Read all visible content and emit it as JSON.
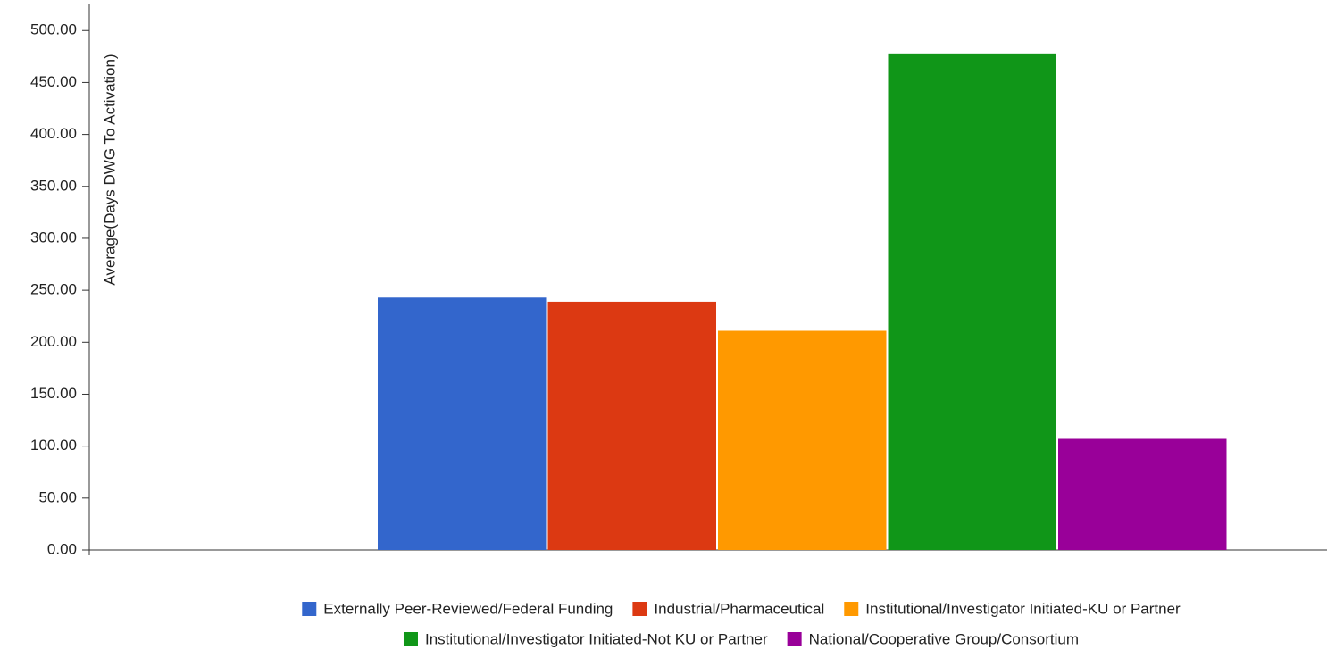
{
  "chart_data": {
    "type": "bar",
    "y_label": "Average(Days DWG To Activation)",
    "categories": [
      null
    ],
    "series": [
      {
        "name": "Externally Peer-Reviewed/Federal Funding",
        "color": "#3366cc",
        "values": [
          243
        ]
      },
      {
        "name": "Industrial/Pharmaceutical",
        "color": "#dc3912",
        "values": [
          239
        ]
      },
      {
        "name": "Institutional/Investigator Initiated-KU or Partner",
        "color": "#ff9900",
        "values": [
          211
        ]
      },
      {
        "name": "Institutional/Investigator Initiated-Not KU or Partner",
        "color": "#109618",
        "values": [
          478
        ]
      },
      {
        "name": "National/Cooperative Group/Consortium",
        "color": "#990099",
        "values": [
          107
        ]
      }
    ],
    "ylim": [
      0,
      526
    ],
    "yticks": [
      {
        "value": 0,
        "label": "0.00"
      },
      {
        "value": 50,
        "label": "50.00"
      },
      {
        "value": 100,
        "label": "100.00"
      },
      {
        "value": 150,
        "label": "150.00"
      },
      {
        "value": 200,
        "label": "200.00"
      },
      {
        "value": 250,
        "label": "250.00"
      },
      {
        "value": 300,
        "label": "300.00"
      },
      {
        "value": 350,
        "label": "350.00"
      },
      {
        "value": 400,
        "label": "400.00"
      },
      {
        "value": 450,
        "label": "450.00"
      },
      {
        "value": 500,
        "label": "500.00"
      }
    ]
  }
}
